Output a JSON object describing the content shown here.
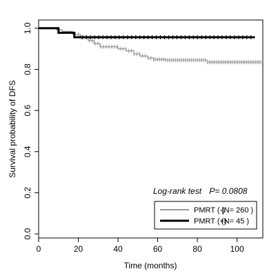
{
  "chart_data": {
    "type": "line",
    "subtype": "kaplan-meier",
    "title": "",
    "xlabel": "Time (months)",
    "ylabel": "Survival probability of DFS",
    "xlim": [
      0,
      113
    ],
    "ylim": [
      -0.02,
      1.04
    ],
    "x_ticks": [
      0,
      20,
      40,
      60,
      80,
      100
    ],
    "y_ticks": [
      0.0,
      0.2,
      0.4,
      0.6,
      0.8,
      1.0
    ],
    "x_tick_labels": [
      "0",
      "20",
      "40",
      "60",
      "80",
      "100"
    ],
    "y_tick_labels": [
      "0.0",
      "0.2",
      "0.4",
      "0.6",
      "0.8",
      "1.0"
    ],
    "grid": false,
    "legend_position": "bottom-right",
    "annotation": {
      "prefix": "Log-rank test",
      "p_label": "P= 0.0808"
    },
    "series": [
      {
        "name": "PMRT (-)",
        "n_label": "(N= 260 )",
        "color": "#999999",
        "steps": [
          [
            0,
            1.0
          ],
          [
            9,
            0.992
          ],
          [
            12,
            0.985
          ],
          [
            17,
            0.97
          ],
          [
            21,
            0.955
          ],
          [
            25,
            0.94
          ],
          [
            28,
            0.925
          ],
          [
            31,
            0.91
          ],
          [
            40,
            0.9
          ],
          [
            44,
            0.89
          ],
          [
            48,
            0.875
          ],
          [
            51,
            0.865
          ],
          [
            55,
            0.855
          ],
          [
            58,
            0.848
          ],
          [
            64,
            0.845
          ],
          [
            85,
            0.835
          ],
          [
            112,
            0.835
          ]
        ],
        "censor_ranges": [
          [
            20,
            58,
            28
          ],
          [
            58,
            85,
            28
          ],
          [
            86,
            112,
            30
          ]
        ]
      },
      {
        "name": "PMRT (+)",
        "n_label": "(N= 45 )",
        "color": "#000000",
        "steps": [
          [
            0,
            1.0
          ],
          [
            10,
            0.978
          ],
          [
            18,
            0.956
          ],
          [
            109,
            0.956
          ]
        ],
        "censor_ranges": [
          [
            22,
            107,
            42
          ]
        ]
      }
    ]
  }
}
